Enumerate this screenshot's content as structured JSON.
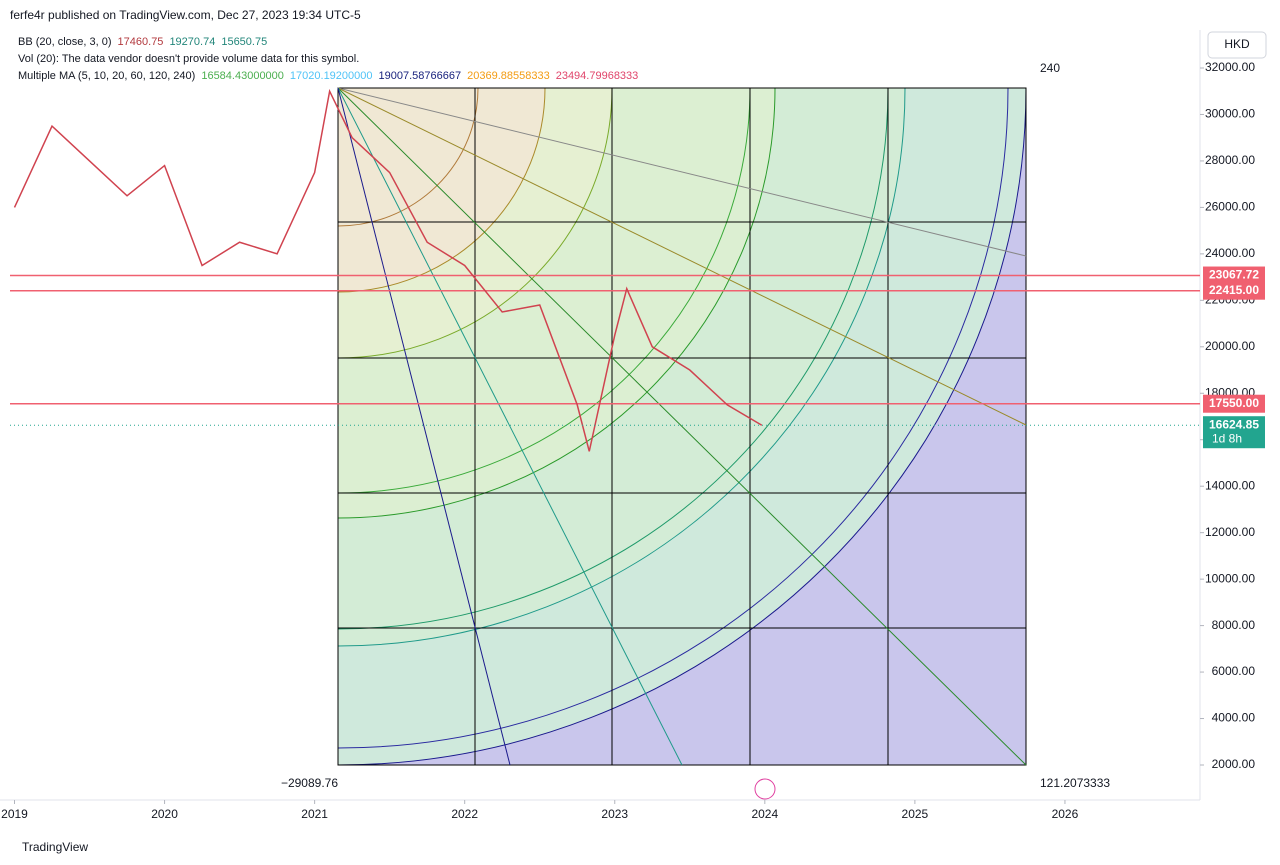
{
  "header": {
    "published": "ferfe4r published on TradingView.com, Dec 27, 2023 19:34 UTC-5",
    "bb": {
      "name": "BB (20, close, 3, 0)",
      "values": [
        "17460.75",
        "19270.74",
        "15650.75"
      ]
    },
    "vol": "Vol (20): The data vendor doesn't provide volume data for this symbol.",
    "ma": {
      "name": "Multiple MA (5, 10, 20, 60, 120, 240)",
      "values": [
        "16584.43000000",
        "17020.19200000",
        "19007.58766667",
        "20369.88558333",
        "23494.79968333"
      ]
    }
  },
  "footer": {
    "brand": "TradingView"
  },
  "chart_data": {
    "type": "line",
    "color": "#d0434f",
    "x": [
      2019.0,
      2019.25,
      2019.5,
      2019.75,
      2020.0,
      2020.25,
      2020.5,
      2020.75,
      2021.0,
      2021.1,
      2021.25,
      2021.5,
      2021.75,
      2022.0,
      2022.25,
      2022.5,
      2022.75,
      2022.83,
      2023.0,
      2023.08,
      2023.25,
      2023.5,
      2023.75,
      2023.98
    ],
    "values": [
      26000,
      29500,
      28000,
      26500,
      27800,
      23500,
      24500,
      24000,
      27500,
      31000,
      29000,
      27500,
      24500,
      23500,
      21500,
      21800,
      17500,
      15500,
      20500,
      22500,
      20000,
      19000,
      17500,
      16624.85
    ],
    "xlim": [
      2018.97,
      2026.9
    ],
    "xticks": [
      2019,
      2020,
      2021,
      2022,
      2023,
      2024,
      2025,
      2026
    ],
    "ylim": [
      2000,
      32000
    ],
    "yticks": [
      {
        "value": 2000,
        "label": "2000.00"
      },
      {
        "value": 4000,
        "label": "4000.00"
      },
      {
        "value": 6000,
        "label": "6000.00"
      },
      {
        "value": 8000,
        "label": "8000.00"
      },
      {
        "value": 10000,
        "label": "10000.00"
      },
      {
        "value": 12000,
        "label": "12000.00"
      },
      {
        "value": 14000,
        "label": "14000.00"
      },
      {
        "value": 16000,
        "label": "16000.00"
      },
      {
        "value": 18000,
        "label": "18000.00"
      },
      {
        "value": 20000,
        "label": "20000.00"
      },
      {
        "value": 22000,
        "label": "22000.00"
      },
      {
        "value": 24000,
        "label": "24000.00"
      },
      {
        "value": 26000,
        "label": "26000.00"
      },
      {
        "value": 28000,
        "label": "28000.00"
      },
      {
        "value": 30000,
        "label": "30000.00"
      },
      {
        "value": 32000,
        "label": "32000.00"
      }
    ],
    "horizontal_lines": {
      "values": [
        23067.72,
        22415,
        17550
      ],
      "value_labels": [
        "23067.72",
        "22415.00",
        "17550.00"
      ],
      "color": "#f06070"
    },
    "last_price": 16624.85,
    "last_price_countdown": "1d 8h",
    "last_price_color": "#22a58f",
    "currency": "HKD",
    "annotations": [
      "240",
      "−29089.76",
      "121.2073333"
    ]
  }
}
